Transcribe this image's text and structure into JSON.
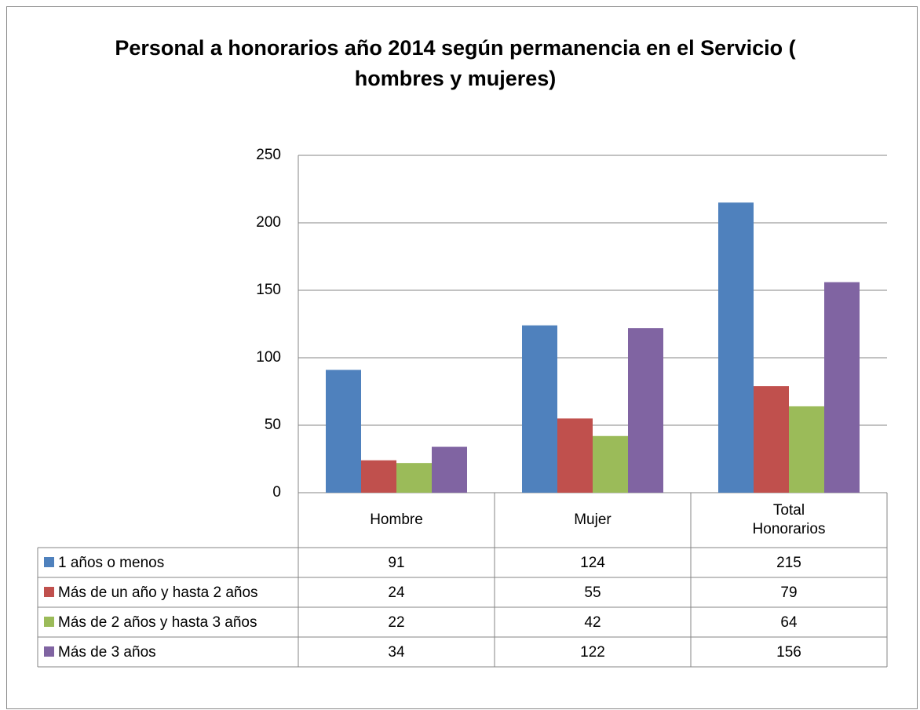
{
  "chart_data": {
    "type": "bar",
    "title": "Personal a honorarios año 2014 según permanencia en el Servicio ( hombres y mujeres)",
    "categories": [
      "Hombre",
      "Mujer",
      "Total Honorarios"
    ],
    "series": [
      {
        "name": "1 años o menos",
        "color": "#4f81bd",
        "values": [
          91,
          124,
          215
        ]
      },
      {
        "name": "Más de un año y hasta 2 años",
        "color": "#c0504d",
        "values": [
          24,
          55,
          79
        ]
      },
      {
        "name": "Más de 2 años y hasta 3 años",
        "color": "#9bbb59",
        "values": [
          22,
          42,
          64
        ]
      },
      {
        "name": "Más de 3 años",
        "color": "#8064a2",
        "values": [
          34,
          122,
          156
        ]
      }
    ],
    "ylim": [
      0,
      250
    ],
    "yticks": [
      0,
      50,
      100,
      150,
      200,
      250
    ],
    "grid": true
  }
}
